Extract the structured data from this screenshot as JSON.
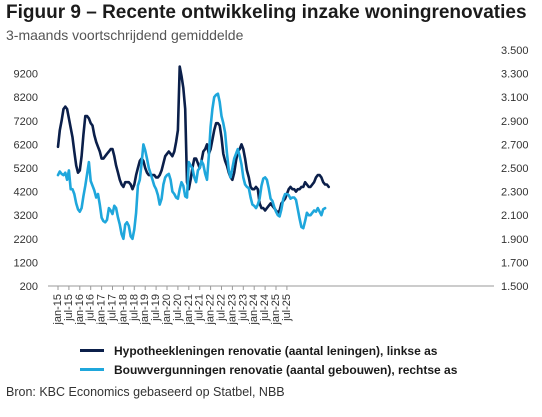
{
  "title": "Figuur 9 – Recente ontwikkeling inzake woningrenovaties",
  "subtitle": "3-maands voortschrijdend gemiddelde",
  "source": "Bron: KBC Economics gebaseerd op Statbel, NBB",
  "colors": {
    "dark": "#0b1f4a",
    "light": "#1fa7dc"
  },
  "chart_data": {
    "type": "line",
    "y_left_ticks": [
      "9200",
      "8200",
      "7200",
      "6200",
      "5200",
      "4200",
      "3200",
      "2200",
      "1200",
      "200"
    ],
    "y_right_ticks": [
      "3.500",
      "3.300",
      "3.100",
      "2.900",
      "2.700",
      "2.500",
      "2.300",
      "2.100",
      "1.900",
      "1.700",
      "1.500"
    ],
    "ylim_left": [
      200,
      10200
    ],
    "ylim_right": [
      1500,
      3500
    ],
    "x_labels": [
      "jan-15",
      "jul-15",
      "jan-16",
      "jul-16",
      "jan-17",
      "jul-17",
      "jan-18",
      "jul-18",
      "jan-19",
      "jul-19",
      "jan-20",
      "jul-20",
      "jan-21",
      "jul-21",
      "jan-22",
      "jul-22",
      "jan-23",
      "jul-23",
      "jan-24",
      "jul-24",
      "jan-25",
      "jul-25"
    ],
    "x_start": "2015-01",
    "series": [
      {
        "name": "Hypotheekleningen renovatie (aantal leningen), linkse as",
        "axis": "left",
        "color": "#0b1f4a",
        "values": [
          6100,
          6800,
          7200,
          7700,
          7800,
          7700,
          7300,
          6900,
          6500,
          5900,
          5300,
          5000,
          5100,
          5700,
          6600,
          7400,
          7400,
          7300,
          7100,
          7000,
          6600,
          6300,
          6100,
          5900,
          5600,
          5600,
          5700,
          5800,
          5900,
          6000,
          6000,
          5700,
          5300,
          5000,
          4700,
          4500,
          4400,
          4600,
          4600,
          4600,
          4500,
          4300,
          4500,
          4900,
          5200,
          5500,
          5600,
          5500,
          5200,
          5000,
          4900,
          4900,
          4900,
          4900,
          4800,
          4800,
          4900,
          5100,
          5400,
          5700,
          5800,
          5900,
          5800,
          5700,
          5900,
          6300,
          6800,
          9500,
          9100,
          8600,
          7700,
          4600,
          4300,
          4700,
          5200,
          5600,
          5600,
          5400,
          5200,
          5500,
          5900,
          6000,
          6200,
          5800,
          6000,
          6400,
          6800,
          7100,
          7100,
          7000,
          6500,
          5800,
          5500,
          5300,
          5000,
          4800,
          4700,
          5000,
          5500,
          5900,
          6000,
          6200,
          6000,
          5600,
          5100,
          4800,
          4400,
          4300,
          4300,
          4400,
          4300,
          3700,
          3500,
          3500,
          3400,
          3500,
          3600,
          3700,
          3600,
          3500,
          3400,
          3300,
          3400,
          3700,
          3800,
          3900,
          4100,
          4300,
          4400,
          4300,
          4300,
          4200,
          4300,
          4300,
          4400,
          4400,
          4600,
          4500,
          4400,
          4400,
          4500,
          4600,
          4800,
          4900,
          4900,
          4800,
          4600,
          4500,
          4500,
          4400
        ]
      },
      {
        "name": "Bouwvergunningen renovatie (aantal gebouwen), rechtse as",
        "axis": "right",
        "color": "#1fa7dc",
        "values": [
          2440,
          2470,
          2450,
          2440,
          2460,
          2400,
          2480,
          2320,
          2320,
          2280,
          2200,
          2150,
          2130,
          2160,
          2260,
          2350,
          2450,
          2550,
          2390,
          2350,
          2310,
          2250,
          2280,
          2190,
          2080,
          2050,
          2040,
          2060,
          2160,
          2140,
          2110,
          2180,
          2160,
          2080,
          2020,
          1940,
          1900,
          2020,
          2040,
          2010,
          1920,
          1900,
          1980,
          2120,
          2350,
          2400,
          2540,
          2700,
          2650,
          2580,
          2500,
          2450,
          2400,
          2350,
          2320,
          2270,
          2190,
          2240,
          2360,
          2420,
          2440,
          2450,
          2400,
          2300,
          2280,
          2250,
          2240,
          2320,
          2380,
          2350,
          2260,
          2250,
          2550,
          2520,
          2500,
          2420,
          2380,
          2480,
          2500,
          2560,
          2530,
          2450,
          2400,
          2600,
          2850,
          3000,
          3100,
          3120,
          3130,
          3060,
          2940,
          2880,
          2800,
          2630,
          2480,
          2420,
          2500,
          2580,
          2620,
          2660,
          2600,
          2530,
          2420,
          2360,
          2340,
          2330,
          2250,
          2190,
          2180,
          2160,
          2190,
          2240,
          2350,
          2410,
          2420,
          2400,
          2330,
          2240,
          2220,
          2170,
          2130,
          2100,
          2090,
          2150,
          2240,
          2280,
          2280,
          2270,
          2240,
          2250,
          2250,
          2230,
          2150,
          2070,
          2000,
          1990,
          2050,
          2120,
          2100,
          2100,
          2120,
          2140,
          2130,
          2160,
          2130,
          2100,
          2150,
          2160
        ]
      }
    ]
  }
}
